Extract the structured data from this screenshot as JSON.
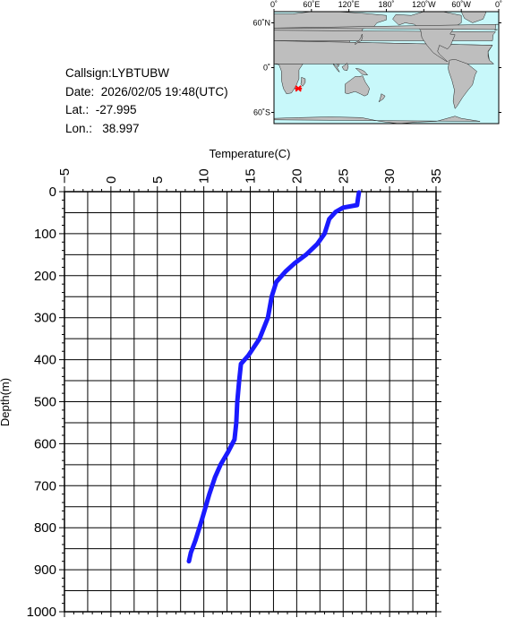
{
  "station": {
    "callsign": "Callsign:LYBTUBW",
    "date": "Date:  2026/02/05 19:48(UTC)",
    "lat": "Lat.:  -27.995",
    "lon": "Lon.:   38.997"
  },
  "map": {
    "top_labels": [
      "0˚",
      "60˚E",
      "120˚E",
      "180˚",
      "120˚W",
      "60˚W",
      "0˚"
    ],
    "side_labels": [
      "60˚N",
      "0˚",
      "60˚S"
    ],
    "colors": {
      "ocean": "#c8f8fa",
      "land": "#bebebe",
      "marker": "#ff0000"
    },
    "marker_lat": -27.995,
    "marker_lon": 38.997
  },
  "chart_data": {
    "type": "line",
    "title": "",
    "xlabel": "Temperature(C)",
    "ylabel": "Depth(m)",
    "xlim": [
      -5,
      35
    ],
    "ylim": [
      1000,
      0
    ],
    "x_ticks": [
      "−5",
      "0",
      "5",
      "10",
      "15",
      "20",
      "25",
      "30",
      "35"
    ],
    "y_ticks": [
      "0",
      "100",
      "200",
      "300",
      "400",
      "500",
      "600",
      "700",
      "800",
      "900",
      "1000"
    ],
    "grid": true,
    "series": [
      {
        "color": "#1a1aff",
        "points": [
          {
            "t": 26.7,
            "d": 2
          },
          {
            "t": 26.6,
            "d": 15
          },
          {
            "t": 26.5,
            "d": 32
          },
          {
            "t": 25.0,
            "d": 38
          },
          {
            "t": 24.2,
            "d": 48
          },
          {
            "t": 23.5,
            "d": 65
          },
          {
            "t": 23.0,
            "d": 100
          },
          {
            "t": 22.2,
            "d": 125
          },
          {
            "t": 21.0,
            "d": 150
          },
          {
            "t": 19.8,
            "d": 170
          },
          {
            "t": 18.8,
            "d": 190
          },
          {
            "t": 17.8,
            "d": 215
          },
          {
            "t": 17.3,
            "d": 250
          },
          {
            "t": 16.9,
            "d": 300
          },
          {
            "t": 16.0,
            "d": 350
          },
          {
            "t": 14.8,
            "d": 390
          },
          {
            "t": 14.0,
            "d": 410
          },
          {
            "t": 13.8,
            "d": 450
          },
          {
            "t": 13.6,
            "d": 500
          },
          {
            "t": 13.5,
            "d": 550
          },
          {
            "t": 13.3,
            "d": 590
          },
          {
            "t": 12.6,
            "d": 620
          },
          {
            "t": 11.8,
            "d": 650
          },
          {
            "t": 11.2,
            "d": 680
          },
          {
            "t": 10.6,
            "d": 720
          },
          {
            "t": 9.8,
            "d": 780
          },
          {
            "t": 9.1,
            "d": 830
          },
          {
            "t": 8.6,
            "d": 860
          },
          {
            "t": 8.4,
            "d": 880
          }
        ]
      }
    ]
  }
}
